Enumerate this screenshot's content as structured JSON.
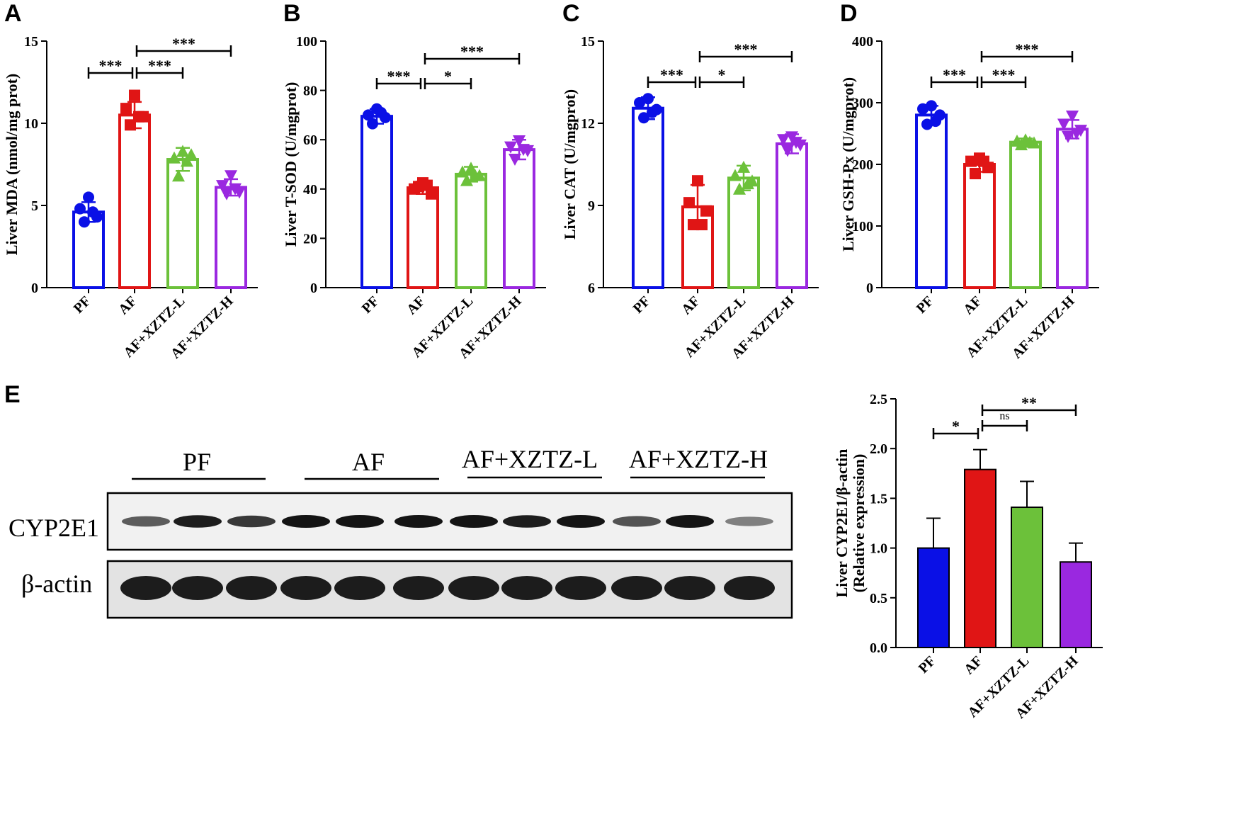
{
  "colors": {
    "PF": "#0a10e6",
    "AF": "#e01515",
    "AF+XZTZ-L": "#6cc13a",
    "AF+XZTZ-H": "#9a28e0"
  },
  "chart_data": [
    {
      "id": "A",
      "type": "bar",
      "panel_label": "A",
      "ylabel": "Liver MDA (nmol/mg prot)",
      "ylim": [
        0,
        15
      ],
      "yticks": [
        "0",
        "5",
        "10",
        "15"
      ],
      "categories": [
        "PF",
        "AF",
        "AF+XZTZ-L",
        "AF+XZTZ-H"
      ],
      "values": [
        4.6,
        10.5,
        7.8,
        6.1
      ],
      "errors": [
        0.6,
        0.8,
        0.7,
        0.5
      ],
      "points": [
        [
          5.5,
          4.8,
          4.3,
          4.0,
          4.6
        ],
        [
          11.7,
          10.9,
          10.4,
          9.9,
          10.4
        ],
        [
          8.3,
          7.9,
          8.1,
          6.8,
          7.7
        ],
        [
          6.8,
          6.2,
          5.8,
          5.7,
          6.0
        ]
      ],
      "markers": [
        "circle",
        "square",
        "triangle",
        "triangle-down"
      ],
      "significance": [
        {
          "from": 0,
          "to": 1,
          "label": "***"
        },
        {
          "from": 1,
          "to": 2,
          "label": "***"
        },
        {
          "from": 1,
          "to": 3,
          "label": "***"
        }
      ]
    },
    {
      "id": "B",
      "type": "bar",
      "panel_label": "B",
      "ylabel": "Liver T-SOD (U/mgprot)",
      "ylim": [
        0,
        100
      ],
      "yticks": [
        "0",
        "20",
        "40",
        "60",
        "80",
        "100"
      ],
      "categories": [
        "PF",
        "AF",
        "AF+XZTZ-L",
        "AF+XZTZ-H"
      ],
      "values": [
        69.5,
        40.5,
        46.0,
        56.0
      ],
      "errors": [
        3.0,
        2.5,
        3.0,
        4.0
      ],
      "points": [
        [
          72.5,
          70.0,
          69.0,
          66.5,
          71.0
        ],
        [
          42.5,
          40.0,
          38.0,
          41.0,
          41.5
        ],
        [
          48.5,
          47.0,
          45.5,
          43.5,
          45.5
        ],
        [
          59.5,
          57.0,
          55.5,
          52.0,
          56.0
        ]
      ],
      "markers": [
        "circle",
        "square",
        "triangle",
        "triangle-down"
      ],
      "significance": [
        {
          "from": 0,
          "to": 1,
          "label": "***"
        },
        {
          "from": 1,
          "to": 2,
          "label": "*"
        },
        {
          "from": 1,
          "to": 3,
          "label": "***"
        }
      ]
    },
    {
      "id": "C",
      "type": "bar",
      "panel_label": "C",
      "ylabel": "Liver CAT (U/mgprot)",
      "ylim": [
        6,
        15
      ],
      "yticks": [
        "6",
        "9",
        "12",
        "15"
      ],
      "categories": [
        "PF",
        "AF",
        "AF+XZTZ-L",
        "AF+XZTZ-H"
      ],
      "values": [
        12.55,
        8.95,
        10.0,
        11.25
      ],
      "errors": [
        0.4,
        0.8,
        0.45,
        0.35
      ],
      "points": [
        [
          12.9,
          12.75,
          12.5,
          12.2,
          12.4
        ],
        [
          9.9,
          9.1,
          8.8,
          8.3,
          8.3
        ],
        [
          10.4,
          10.1,
          9.9,
          9.6,
          9.8
        ],
        [
          11.5,
          11.4,
          11.2,
          11.0,
          11.3
        ]
      ],
      "markers": [
        "circle",
        "square",
        "triangle",
        "triangle-down"
      ],
      "significance": [
        {
          "from": 0,
          "to": 1,
          "label": "***"
        },
        {
          "from": 1,
          "to": 2,
          "label": "*"
        },
        {
          "from": 1,
          "to": 3,
          "label": "***"
        }
      ]
    },
    {
      "id": "D",
      "type": "bar",
      "panel_label": "D",
      "ylabel": "Liver GSH-Px (U/mgprot)",
      "ylim": [
        0,
        400
      ],
      "yticks": [
        "0",
        "100",
        "200",
        "300",
        "400"
      ],
      "categories": [
        "PF",
        "AF",
        "AF+XZTZ-L",
        "AF+XZTZ-H"
      ],
      "values": [
        280,
        200,
        236,
        257
      ],
      "errors": [
        15,
        12,
        6,
        15
      ],
      "points": [
        [
          295,
          290,
          280,
          265,
          270
        ],
        [
          210,
          205,
          195,
          185,
          205
        ],
        [
          240,
          238,
          235,
          232,
          236
        ],
        [
          278,
          265,
          255,
          245,
          250
        ]
      ],
      "markers": [
        "circle",
        "square",
        "triangle",
        "triangle-down"
      ],
      "significance": [
        {
          "from": 0,
          "to": 1,
          "label": "***"
        },
        {
          "from": 1,
          "to": 2,
          "label": "***"
        },
        {
          "from": 1,
          "to": 3,
          "label": "***"
        }
      ]
    },
    {
      "id": "E",
      "type": "bar",
      "panel_label": "",
      "ylabel": "Liver CYP2E1/β-actin",
      "ylabel2": "(Relative expression)",
      "ylim": [
        0,
        2.5
      ],
      "yticks": [
        "0.0",
        "0.5",
        "1.0",
        "1.5",
        "2.0",
        "2.5"
      ],
      "categories": [
        "PF",
        "AF",
        "AF+XZTZ-L",
        "AF+XZTZ-H"
      ],
      "values": [
        1.0,
        1.79,
        1.41,
        0.86
      ],
      "errors": [
        0.3,
        0.2,
        0.26,
        0.19
      ],
      "significance": [
        {
          "from": 0,
          "to": 1,
          "label": "*"
        },
        {
          "from": 1,
          "to": 2,
          "label": "ns"
        },
        {
          "from": 1,
          "to": 3,
          "label": "**"
        }
      ]
    }
  ],
  "western_blot": {
    "panel_label": "E",
    "groups": [
      "PF",
      "AF",
      "AF+XZTZ-L",
      "AF+XZTZ-H"
    ],
    "rows": [
      "CYP2E1",
      "β-actin"
    ],
    "cyp2e1_intensity": [
      0.6,
      0.95,
      0.8,
      1.0,
      1.0,
      1.0,
      1.0,
      0.95,
      1.0,
      0.65,
      1.0,
      0.4
    ]
  }
}
